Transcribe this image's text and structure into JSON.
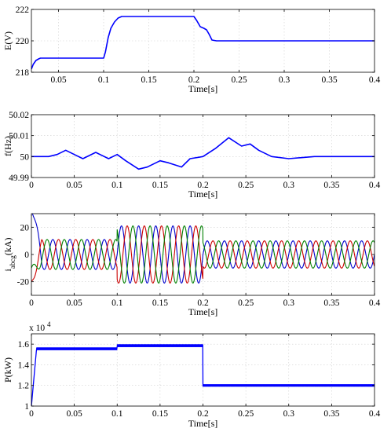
{
  "chart_data": [
    {
      "type": "line",
      "ylabel": "E(V)",
      "xlabel": "Time[s]",
      "xlim": [
        0.02,
        0.4
      ],
      "ylim": [
        218,
        222
      ],
      "xticks": [
        0.05,
        0.1,
        0.15,
        0.2,
        0.25,
        0.3,
        0.35,
        0.4
      ],
      "xtick_labels": [
        "0.05",
        "0.1",
        "0.15",
        "0.2",
        "0.25",
        "0.3",
        "0.35",
        "0.4"
      ],
      "yticks": [
        218,
        220,
        222
      ],
      "ytick_labels": [
        "218",
        "220",
        "222"
      ],
      "grid": true,
      "series": [
        {
          "color": "#0000ff",
          "x": [
            0.02,
            0.022,
            0.025,
            0.028,
            0.03,
            0.05,
            0.1,
            0.102,
            0.105,
            0.108,
            0.112,
            0.116,
            0.12,
            0.125,
            0.2,
            0.203,
            0.207,
            0.211,
            0.214,
            0.217,
            0.22,
            0.225,
            0.4
          ],
          "y": [
            218.2,
            218.5,
            218.75,
            218.85,
            218.9,
            218.9,
            218.9,
            219.3,
            220.2,
            220.8,
            221.2,
            221.45,
            221.55,
            221.55,
            221.55,
            221.3,
            220.9,
            220.8,
            220.7,
            220.4,
            220.05,
            220.0,
            220.0
          ]
        }
      ]
    },
    {
      "type": "line",
      "ylabel": "f(Hz)",
      "xlabel": "Time[s]",
      "xlim": [
        0,
        0.4
      ],
      "ylim": [
        49.99,
        50.02
      ],
      "xticks": [
        0,
        0.05,
        0.1,
        0.15,
        0.2,
        0.25,
        0.3,
        0.35,
        0.4
      ],
      "xtick_labels": [
        "0",
        "0.05",
        "0.1",
        "0.15",
        "0.2",
        "0.25",
        "0.3",
        "0.35",
        "0.4"
      ],
      "yticks": [
        49.99,
        50,
        50.01,
        50.02
      ],
      "ytick_labels": [
        "49.99",
        "50",
        "50.01",
        "50.02"
      ],
      "grid": true,
      "series": [
        {
          "color": "#0000ff",
          "x": [
            0,
            0.02,
            0.03,
            0.04,
            0.05,
            0.06,
            0.075,
            0.09,
            0.1,
            0.11,
            0.125,
            0.135,
            0.15,
            0.16,
            0.175,
            0.185,
            0.2,
            0.215,
            0.23,
            0.245,
            0.255,
            0.265,
            0.28,
            0.3,
            0.33,
            0.36,
            0.4
          ],
          "y": [
            50.0,
            50.0,
            50.001,
            50.003,
            50.001,
            49.999,
            50.002,
            49.999,
            50.001,
            49.998,
            49.994,
            49.995,
            49.998,
            49.997,
            49.995,
            49.999,
            50.0,
            50.004,
            50.009,
            50.005,
            50.006,
            50.003,
            50.0,
            49.999,
            50.0,
            50.0,
            50.0
          ]
        }
      ]
    },
    {
      "type": "line",
      "ylabel": "iabcg(kA)",
      "ylabel_main": "i",
      "ylabel_sub": "abcg",
      "ylabel_unit": "(kA)",
      "xlabel": "Time[s]",
      "xlim": [
        0,
        0.4
      ],
      "ylim": [
        -30,
        30
      ],
      "xticks": [
        0,
        0.05,
        0.1,
        0.15,
        0.2,
        0.25,
        0.3,
        0.35,
        0.4
      ],
      "xtick_labels": [
        "0",
        "0.05",
        "0.1",
        "0.15",
        "0.2",
        "0.25",
        "0.3",
        "0.35",
        "0.4"
      ],
      "yticks": [
        -20,
        0,
        20
      ],
      "ytick_labels": [
        "-20",
        "0",
        "20"
      ],
      "grid": true,
      "waveform": {
        "frequency_hz": 50,
        "phases_deg": [
          0,
          -120,
          120
        ],
        "colors": [
          "#0000cc",
          "#cc0000",
          "#008000"
        ],
        "amplitude_segments": [
          {
            "t0": 0,
            "t1": 0.1,
            "amplitude": 11
          },
          {
            "t0": 0.1,
            "t1": 0.2,
            "amplitude": 21
          },
          {
            "t0": 0.2,
            "t1": 0.4,
            "amplitude": 10
          }
        ],
        "startup_transient": {
          "peak": 33,
          "duration": 0.012
        }
      }
    },
    {
      "type": "line",
      "ylabel": "P(kW)",
      "xlabel": "Time[s]",
      "xlim": [
        0,
        0.4
      ],
      "ylim": [
        1.0,
        1.7
      ],
      "exponent_label": "x 10",
      "exponent": "4",
      "xticks": [
        0,
        0.05,
        0.1,
        0.15,
        0.2,
        0.25,
        0.3,
        0.35,
        0.4
      ],
      "xtick_labels": [
        "0",
        "0.05",
        "0.1",
        "0.15",
        "0.2",
        "0.25",
        "0.3",
        "0.35",
        "0.4"
      ],
      "yticks": [
        1.0,
        1.2,
        1.4,
        1.6
      ],
      "ytick_labels": [
        "1",
        "1.2",
        "1.4",
        "1.6"
      ],
      "grid": true,
      "series": [
        {
          "color": "#0000ff",
          "segments": [
            {
              "t0": 0,
              "t1": 0.1,
              "value": 1.555,
              "ripple": 0.018
            },
            {
              "t0": 0.1,
              "t1": 0.2,
              "value": 1.585,
              "ripple": 0.018
            },
            {
              "t0": 0.2,
              "t1": 0.4,
              "value": 1.2,
              "ripple": 0.015
            }
          ],
          "startup": {
            "from": 1.0,
            "duration": 0.006
          }
        }
      ]
    }
  ]
}
